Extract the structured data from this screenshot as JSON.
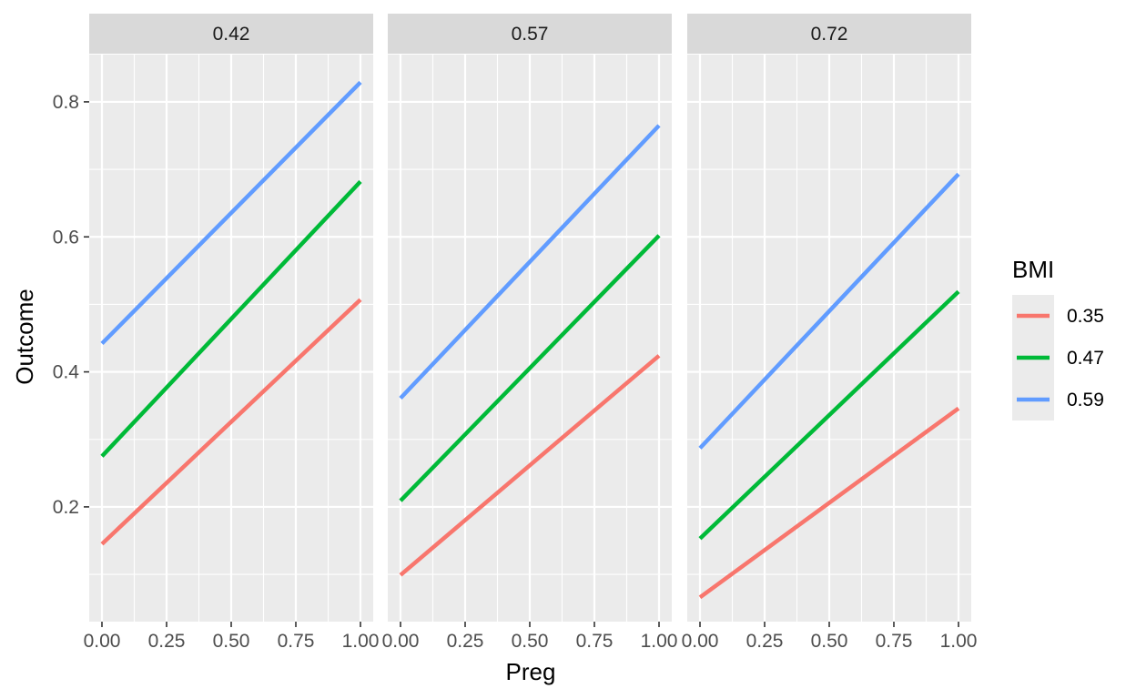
{
  "chart_data": {
    "type": "line",
    "facet_variable_values": [
      "0.42",
      "0.57",
      "0.72"
    ],
    "xlabel": "Preg",
    "ylabel": "Outcome",
    "xlim": [
      0,
      1
    ],
    "ylim": [
      0.03,
      0.87
    ],
    "x_ticks": [
      "0.00",
      "0.25",
      "0.50",
      "0.75",
      "1.00"
    ],
    "x_tick_values": [
      0,
      0.25,
      0.5,
      0.75,
      1
    ],
    "y_ticks": [
      "0.2",
      "0.4",
      "0.6",
      "0.8"
    ],
    "y_tick_values": [
      0.2,
      0.4,
      0.6,
      0.8
    ],
    "grid": true,
    "legend": {
      "title": "BMI",
      "position": "right",
      "entries": [
        {
          "label": "0.35",
          "color": "#F8766D"
        },
        {
          "label": "0.47",
          "color": "#00BA38"
        },
        {
          "label": "0.59",
          "color": "#619CFF"
        }
      ]
    },
    "panels": [
      {
        "strip": "0.42",
        "series": [
          {
            "name": "0.35",
            "color": "#F8766D",
            "x": [
              0,
              1
            ],
            "y": [
              0.145,
              0.507
            ]
          },
          {
            "name": "0.47",
            "color": "#00BA38",
            "x": [
              0,
              1
            ],
            "y": [
              0.275,
              0.682
            ]
          },
          {
            "name": "0.59",
            "color": "#619CFF",
            "x": [
              0,
              1
            ],
            "y": [
              0.442,
              0.829
            ]
          }
        ]
      },
      {
        "strip": "0.57",
        "series": [
          {
            "name": "0.35",
            "color": "#F8766D",
            "x": [
              0,
              1
            ],
            "y": [
              0.099,
              0.424
            ]
          },
          {
            "name": "0.47",
            "color": "#00BA38",
            "x": [
              0,
              1
            ],
            "y": [
              0.209,
              0.602
            ]
          },
          {
            "name": "0.59",
            "color": "#619CFF",
            "x": [
              0,
              1
            ],
            "y": [
              0.361,
              0.765
            ]
          }
        ]
      },
      {
        "strip": "0.72",
        "series": [
          {
            "name": "0.35",
            "color": "#F8766D",
            "x": [
              0,
              1
            ],
            "y": [
              0.066,
              0.346
            ]
          },
          {
            "name": "0.47",
            "color": "#00BA38",
            "x": [
              0,
              1
            ],
            "y": [
              0.153,
              0.519
            ]
          },
          {
            "name": "0.59",
            "color": "#619CFF",
            "x": [
              0,
              1
            ],
            "y": [
              0.287,
              0.693
            ]
          }
        ]
      }
    ]
  },
  "colors": {
    "panel_background": "#EBEBEB",
    "strip_background": "#D9D9D9",
    "grid": "#FFFFFF"
  }
}
